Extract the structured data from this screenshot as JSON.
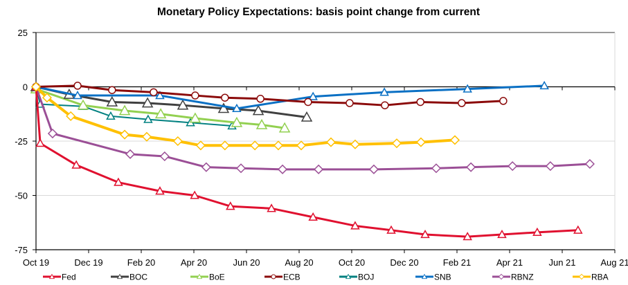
{
  "chart_data": {
    "type": "line",
    "title": "Monetary Policy Expectations: basis point change from current",
    "xlabel": "",
    "ylabel": "",
    "x_unit": "months since Oct 19",
    "xlim": [
      0,
      22
    ],
    "ylim": [
      -75,
      25
    ],
    "yticks": [
      25,
      0,
      -25,
      -50,
      -75
    ],
    "ytick_labels": [
      "25",
      "0",
      "-25",
      "-50",
      "-75"
    ],
    "xticks": [
      0,
      2,
      4,
      6,
      8,
      10,
      12,
      14,
      16,
      18,
      20,
      22
    ],
    "xtick_labels": [
      "Oct 19",
      "Dec 19",
      "Feb 20",
      "Apr 20",
      "Jun 20",
      "Aug 20",
      "Oct 20",
      "Dec 20",
      "Feb 21",
      "Apr 21",
      "Jun 21",
      "Aug 21"
    ],
    "grid": true,
    "legend_position": "bottom",
    "series": [
      {
        "name": "Fed",
        "color": "#e0102f",
        "marker": "triangle",
        "x": [
          0,
          0.16,
          1.53,
          3.13,
          4.71,
          6.03,
          7.39,
          8.95,
          10.53,
          12.13,
          13.5,
          14.79,
          16.4,
          17.71,
          19.05,
          20.6
        ],
        "y": [
          0,
          -26,
          -36,
          -44,
          -48,
          -50,
          -55,
          -56,
          -60,
          -64,
          -66,
          -68,
          -69,
          -68,
          -67,
          -66
        ]
      },
      {
        "name": "BOC",
        "color": "#404040",
        "marker": "triangle-large",
        "x": [
          0,
          1.26,
          2.89,
          4.24,
          5.58,
          7.13,
          8.45,
          10.29
        ],
        "y": [
          0,
          -3.5,
          -7,
          -7.5,
          -8.5,
          -10,
          -11,
          -14
        ]
      },
      {
        "name": "BoE",
        "color": "#92d050",
        "marker": "triangle-large",
        "x": [
          0,
          1.79,
          3.37,
          4.74,
          6.05,
          7.63,
          8.58,
          9.45
        ],
        "y": [
          -1,
          -8.5,
          -11,
          -12.5,
          -14.5,
          -16.5,
          -17.5,
          -19
        ]
      },
      {
        "name": "ECB",
        "color": "#8b0a0a",
        "marker": "circle",
        "x": [
          0,
          1.58,
          2.89,
          4.47,
          6.05,
          7.18,
          8.53,
          10.34,
          11.92,
          13.26,
          14.61,
          16.18,
          17.76
        ],
        "y": [
          0,
          0.5,
          -1.5,
          -2.5,
          -4,
          -5,
          -5.5,
          -7,
          -7.5,
          -8.5,
          -7,
          -7.5,
          -6.5
        ]
      },
      {
        "name": "BOJ",
        "color": "#008080",
        "marker": "triangle",
        "x": [
          0,
          0.16,
          1.79,
          2.84,
          4.26,
          5.87,
          7.45
        ],
        "y": [
          0,
          -8,
          -9,
          -13.5,
          -15,
          -16.5,
          -18
        ]
      },
      {
        "name": "SNB",
        "color": "#0a70c4",
        "marker": "triangle",
        "x": [
          0,
          1.58,
          4.71,
          7.63,
          10.53,
          13.24,
          16.4,
          19.32
        ],
        "y": [
          0,
          -4,
          -4,
          -10,
          -4.5,
          -2.5,
          -1,
          0.5
        ]
      },
      {
        "name": "RBNZ",
        "color": "#9b4f96",
        "marker": "diamond",
        "x": [
          0,
          0.63,
          3.58,
          4.89,
          6.47,
          7.79,
          9.37,
          10.74,
          12.84,
          15.21,
          16.53,
          18.11,
          19.55,
          21.05
        ],
        "y": [
          0,
          -21.5,
          -31,
          -32,
          -37,
          -37.5,
          -38,
          -38,
          -38,
          -37.5,
          -37,
          -36.5,
          -36.5,
          -35.5
        ]
      },
      {
        "name": "RBA",
        "color": "#ffc000",
        "marker": "diamond",
        "x": [
          0,
          0.42,
          1.32,
          3.37,
          4.21,
          5.39,
          6.26,
          7.18,
          8.32,
          9.21,
          10.08,
          11.21,
          12.13,
          13.71,
          14.63,
          15.92
        ],
        "y": [
          0,
          -5,
          -13.5,
          -22,
          -23,
          -25,
          -27,
          -27,
          -27,
          -27,
          -27,
          -25.5,
          -26.5,
          -26,
          -25.5,
          -24.5
        ]
      }
    ]
  }
}
